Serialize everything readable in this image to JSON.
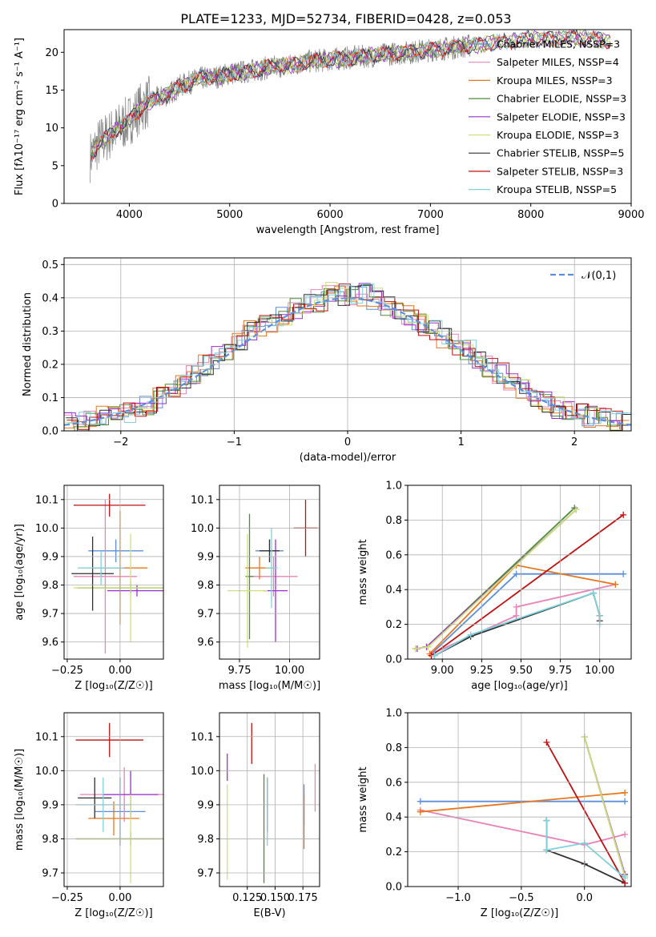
{
  "figure_title": "PLATE=1233, MJD=52734, FIBERID=0428, z=0.053",
  "colors": {
    "Chabrier MILES": "#5b8fdc",
    "Salpeter MILES": "#e882b8",
    "Kroupa MILES": "#e8761e",
    "Chabrier ELODIE": "#4d8c38",
    "Salpeter ELODIE": "#9a2fd0",
    "Kroupa ELODIE": "#cfe07a",
    "Chabrier STELIB": "#303030",
    "Salpeter STELIB": "#c01010",
    "Kroupa STELIB": "#7fd2dc",
    "data": "#808080",
    "normal": "#5b8fdc"
  },
  "chart_data": [
    {
      "id": "spectrum",
      "type": "line",
      "title": "",
      "xlabel": "wavelength [Angstrom, rest frame]",
      "ylabel": "Flux [fλ10⁻¹⁷ erg cm⁻² s⁻¹ A⁻¹]",
      "xlim": [
        3350,
        9000
      ],
      "ylim": [
        0,
        23
      ],
      "xticks": [
        "4000",
        "5000",
        "6000",
        "7000",
        "8000",
        "9000"
      ],
      "yticks": [
        "0",
        "5",
        "10",
        "15",
        "20"
      ],
      "legend_position": "right",
      "legend": [
        "Chabrier MILES, NSSP=3",
        "Salpeter MILES, NSSP=4",
        "Kroupa MILES, NSSP=3",
        "Chabrier ELODIE, NSSP=3",
        "Salpeter ELODIE, NSSP=3",
        "Kroupa ELODIE, NSSP=3",
        "Chabrier STELIB, NSSP=5",
        "Salpeter STELIB, NSSP=3",
        "Kroupa STELIB, NSSP=5"
      ],
      "continuum": {
        "x": [
          3600,
          3700,
          3800,
          3900,
          4000,
          4100,
          4200,
          4300,
          4400,
          4500,
          4700,
          4900,
          5000,
          5200,
          5400,
          5600,
          5800,
          6000,
          6200,
          6400,
          6600,
          6800,
          7000,
          7200,
          7400,
          7600,
          7800,
          8000,
          8200,
          8400,
          8600,
          8800
        ],
        "y": [
          6,
          8,
          9,
          10,
          11,
          12.5,
          13.5,
          14,
          14.5,
          15.5,
          16.5,
          16.8,
          17.2,
          17.5,
          18,
          18.3,
          18.8,
          19,
          19.3,
          19.5,
          19.8,
          20,
          20.3,
          20.6,
          20.9,
          21.2,
          21.5,
          21.7,
          21.8,
          22,
          21.7,
          21.5
        ]
      }
    },
    {
      "id": "residuals",
      "type": "step",
      "xlabel": "(data-model)/error",
      "ylabel": "Normed distribution",
      "xlim": [
        -2.5,
        2.5
      ],
      "ylim": [
        0,
        0.52
      ],
      "xticks": [
        "−2",
        "−1",
        "0",
        "1",
        "2"
      ],
      "yticks": [
        "0.0",
        "0.1",
        "0.2",
        "0.3",
        "0.4",
        "0.5"
      ],
      "legend": [
        "𝒩(0,1)"
      ],
      "legend_position": "top-right",
      "bins": [
        -2.5,
        -2.4,
        -2.3,
        -2.2,
        -2.1,
        -2.0,
        -1.9,
        -1.8,
        -1.7,
        -1.6,
        -1.5,
        -1.4,
        -1.3,
        -1.2,
        -1.1,
        -1.0,
        -0.9,
        -0.8,
        -0.7,
        -0.6,
        -0.5,
        -0.4,
        -0.3,
        -0.2,
        -0.1,
        0.0,
        0.1,
        0.2,
        0.3,
        0.4,
        0.5,
        0.6,
        0.7,
        0.8,
        0.9,
        1.0,
        1.1,
        1.2,
        1.3,
        1.4,
        1.5,
        1.6,
        1.7,
        1.8,
        1.9,
        2.0,
        2.1,
        2.2,
        2.3,
        2.4,
        2.5
      ],
      "mean_values": [
        0.02,
        0.025,
        0.03,
        0.04,
        0.045,
        0.055,
        0.065,
        0.08,
        0.1,
        0.12,
        0.14,
        0.165,
        0.2,
        0.22,
        0.24,
        0.27,
        0.3,
        0.32,
        0.33,
        0.35,
        0.37,
        0.38,
        0.39,
        0.42,
        0.41,
        0.4,
        0.41,
        0.4,
        0.38,
        0.37,
        0.35,
        0.32,
        0.3,
        0.28,
        0.26,
        0.24,
        0.22,
        0.19,
        0.17,
        0.15,
        0.13,
        0.1,
        0.085,
        0.07,
        0.06,
        0.05,
        0.04,
        0.035,
        0.03,
        0.02
      ]
    },
    {
      "id": "age-vs-z",
      "type": "errorbar",
      "xlabel": "Z [log₁₀(Z/Z☉)]",
      "ylabel": "age  [log₁₀(age/yr)]",
      "xlim": [
        -0.265,
        0.205
      ],
      "ylim": [
        9.54,
        10.15
      ],
      "xticks": [
        "−0.25",
        "0.00"
      ],
      "yticks": [
        "9.6",
        "9.7",
        "9.8",
        "9.9",
        "10.0",
        "10.1"
      ],
      "points": [
        {
          "series": "Chabrier MILES",
          "x": -0.02,
          "xerr": 0.13,
          "y": 9.92,
          "yerr": 0.04
        },
        {
          "series": "Salpeter MILES",
          "x": -0.07,
          "xerr": 0.15,
          "y": 9.83,
          "yerr": 0.27
        },
        {
          "series": "Kroupa MILES",
          "x": 0.0,
          "xerr": 0.13,
          "y": 9.86,
          "yerr": 0.2
        },
        {
          "series": "Chabrier ELODIE",
          "x": 0.05,
          "xerr": 0.25,
          "y": 9.79,
          "yerr": 0.02
        },
        {
          "series": "Salpeter ELODIE",
          "x": 0.08,
          "xerr": 0.14,
          "y": 9.78,
          "yerr": 0.02
        },
        {
          "series": "Kroupa ELODIE",
          "x": 0.05,
          "xerr": 0.27,
          "y": 9.79,
          "yerr": 0.19
        },
        {
          "series": "Chabrier STELIB",
          "x": -0.13,
          "xerr": 0.1,
          "y": 9.84,
          "yerr": 0.13
        },
        {
          "series": "Salpeter STELIB",
          "x": -0.05,
          "xerr": 0.17,
          "y": 10.08,
          "yerr": 0.04
        },
        {
          "series": "Kroupa STELIB",
          "x": -0.09,
          "xerr": 0.11,
          "y": 9.86,
          "yerr": 0.06
        }
      ]
    },
    {
      "id": "age-vs-mass",
      "type": "errorbar",
      "xlabel": "mass [log₁₀(M/M☉)]",
      "ylabel": "",
      "xlim": [
        9.65,
        10.15
      ],
      "ylim": [
        9.54,
        10.15
      ],
      "xticks": [
        "9.75",
        "10.00"
      ],
      "yticks": [
        "9.6",
        "9.7",
        "9.8",
        "9.9",
        "10.0",
        "10.1"
      ],
      "points": [
        {
          "series": "Chabrier MILES",
          "x": 9.9,
          "xerr": 0.07,
          "y": 9.92,
          "yerr": 0.04
        },
        {
          "series": "Salpeter MILES",
          "x": 9.92,
          "xerr": 0.12,
          "y": 9.83,
          "yerr": 0.07
        },
        {
          "series": "Kroupa MILES",
          "x": 9.85,
          "xerr": 0.07,
          "y": 9.86,
          "yerr": 0.04
        },
        {
          "series": "Chabrier ELODIE",
          "x": 9.8,
          "xerr": 0.02,
          "y": 9.83,
          "yerr": 0.22
        },
        {
          "series": "Salpeter ELODIE",
          "x": 9.93,
          "xerr": 0.06,
          "y": 9.78,
          "yerr": 0.18
        },
        {
          "series": "Kroupa ELODIE",
          "x": 9.79,
          "xerr": 0.1,
          "y": 9.78,
          "yerr": 0.2
        },
        {
          "series": "Chabrier STELIB",
          "x": 9.9,
          "xerr": 0.05,
          "y": 9.92,
          "yerr": 0.04
        },
        {
          "series": "Salpeter STELIB",
          "x": 10.08,
          "xerr": 0.06,
          "y": 10.0,
          "yerr": 0.1
        },
        {
          "series": "Kroupa STELIB",
          "x": 9.91,
          "xerr": 0.03,
          "y": 9.86,
          "yerr": 0.14
        }
      ]
    },
    {
      "id": "mass-weight-vs-age",
      "type": "line",
      "xlabel": "age  [log₁₀(age/yr)]",
      "ylabel": "mass weight",
      "xlim": [
        8.78,
        10.2
      ],
      "ylim": [
        0,
        1
      ],
      "xticks": [
        "9.00",
        "9.25",
        "9.50",
        "9.75",
        "10.00"
      ],
      "yticks": [
        "0.0",
        "0.2",
        "0.4",
        "0.6",
        "0.8",
        "1.0"
      ],
      "series": [
        {
          "name": "Chabrier MILES",
          "x": [
            8.93,
            9.47,
            10.15
          ],
          "y": [
            0.03,
            0.49,
            0.49
          ]
        },
        {
          "name": "Salpeter MILES",
          "x": [
            8.93,
            9.47,
            9.47,
            10.1
          ],
          "y": [
            0.03,
            0.25,
            0.3,
            0.43
          ]
        },
        {
          "name": "Kroupa MILES",
          "x": [
            8.92,
            9.47,
            10.1
          ],
          "y": [
            0.03,
            0.54,
            0.43
          ]
        },
        {
          "name": "Chabrier ELODIE",
          "x": [
            8.83,
            8.9,
            9.84
          ],
          "y": [
            0.06,
            0.07,
            0.87
          ]
        },
        {
          "name": "Salpeter ELODIE",
          "x": [
            8.84,
            8.9,
            9.85
          ],
          "y": [
            0.06,
            0.07,
            0.86
          ]
        },
        {
          "name": "Kroupa ELODIE",
          "x": [
            8.83,
            8.91,
            9.85
          ],
          "y": [
            0.06,
            0.07,
            0.86
          ]
        },
        {
          "name": "Chabrier STELIB",
          "x": [
            8.95,
            9.18,
            9.96,
            10.0,
            10.0
          ],
          "y": [
            0.02,
            0.13,
            0.38,
            0.25,
            0.22
          ]
        },
        {
          "name": "Salpeter STELIB",
          "x": [
            8.93,
            10.15
          ],
          "y": [
            0.02,
            0.83
          ]
        },
        {
          "name": "Kroupa STELIB",
          "x": [
            8.95,
            9.18,
            9.96,
            10.0,
            10.0
          ],
          "y": [
            0.02,
            0.14,
            0.38,
            0.25,
            0.2
          ]
        }
      ]
    },
    {
      "id": "mass-vs-z",
      "type": "errorbar",
      "xlabel": "Z [log₁₀(Z/Z☉)]",
      "ylabel": "mass [log₁₀(M/M☉)]",
      "xlim": [
        -0.265,
        0.205
      ],
      "ylim": [
        9.66,
        10.17
      ],
      "xticks": [
        "−0.25",
        "0.00"
      ],
      "yticks": [
        "9.7",
        "9.8",
        "9.9",
        "10.0",
        "10.1"
      ],
      "points": [
        {
          "series": "Chabrier MILES",
          "x": 0.0,
          "xerr": 0.12,
          "y": 9.88,
          "yerr": 0.1
        },
        {
          "series": "Salpeter MILES",
          "x": 0.02,
          "xerr": 0.21,
          "y": 9.93,
          "yerr": 0.08
        },
        {
          "series": "Kroupa MILES",
          "x": -0.03,
          "xerr": 0.12,
          "y": 9.86,
          "yerr": 0.05
        },
        {
          "series": "Chabrier ELODIE",
          "x": 0.05,
          "xerr": 0.26,
          "y": 9.8,
          "yerr": 0.02
        },
        {
          "series": "Salpeter ELODIE",
          "x": 0.05,
          "xerr": 0.13,
          "y": 9.93,
          "yerr": 0.07
        },
        {
          "series": "Kroupa ELODIE",
          "x": 0.05,
          "xerr": 0.26,
          "y": 9.8,
          "yerr": 0.13
        },
        {
          "series": "Chabrier STELIB",
          "x": -0.12,
          "xerr": 0.08,
          "y": 9.92,
          "yerr": 0.06
        },
        {
          "series": "Salpeter STELIB",
          "x": -0.05,
          "xerr": 0.16,
          "y": 10.09,
          "yerr": 0.05
        },
        {
          "series": "Kroupa STELIB",
          "x": -0.08,
          "xerr": 0.13,
          "y": 9.9,
          "yerr": 0.08
        }
      ]
    },
    {
      "id": "mass-vs-ebv",
      "type": "errorbar",
      "xlabel": "E(B-V)",
      "ylabel": "",
      "xlim": [
        0.1,
        0.19
      ],
      "ylim": [
        9.66,
        10.17
      ],
      "xticks": [
        "0.125",
        "0.150",
        "0.175"
      ],
      "yticks": [
        "9.7",
        "9.8",
        "9.9",
        "10.0",
        "10.1"
      ],
      "points": [
        {
          "series": "Chabrier MILES",
          "x": 0.176,
          "y": 9.9,
          "yerr": 0.06
        },
        {
          "series": "Salpeter MILES",
          "x": 0.186,
          "y": 9.95,
          "yerr": 0.07
        },
        {
          "series": "Kroupa MILES",
          "x": 0.176,
          "y": 9.85,
          "yerr": 0.08
        },
        {
          "series": "Chabrier ELODIE",
          "x": 0.14,
          "y": 9.83,
          "yerr": 0.16
        },
        {
          "series": "Salpeter ELODIE",
          "x": 0.107,
          "y": 10.01,
          "yerr": 0.04
        },
        {
          "series": "Kroupa ELODIE",
          "x": 0.107,
          "y": 9.82,
          "yerr": 0.14
        },
        {
          "series": "Chabrier STELIB",
          "x": 0.143,
          "y": 9.9,
          "yerr": 0.08
        },
        {
          "series": "Salpeter STELIB",
          "x": 0.129,
          "y": 10.08,
          "yerr": 0.06
        },
        {
          "series": "Kroupa STELIB",
          "x": 0.143,
          "y": 9.88,
          "yerr": 0.1
        }
      ]
    },
    {
      "id": "mass-weight-vs-z",
      "type": "line",
      "xlabel": "Z [log₁₀(Z/Z☉)]",
      "ylabel": "mass weight",
      "xlim": [
        -1.4,
        0.37
      ],
      "ylim": [
        0,
        1
      ],
      "xticks": [
        "−1.0",
        "−0.5",
        "0.0"
      ],
      "yticks": [
        "0.0",
        "0.2",
        "0.4",
        "0.6",
        "0.8",
        "1.0"
      ],
      "series": [
        {
          "name": "Chabrier MILES",
          "x": [
            -1.3,
            0.32
          ],
          "y": [
            0.49,
            0.49
          ]
        },
        {
          "name": "Salpeter MILES",
          "x": [
            -1.3,
            0.0,
            0.32
          ],
          "y": [
            0.44,
            0.24,
            0.3
          ]
        },
        {
          "name": "Kroupa MILES",
          "x": [
            -1.3,
            0.32
          ],
          "y": [
            0.43,
            0.54
          ]
        },
        {
          "name": "Chabrier ELODIE",
          "x": [
            0.0,
            0.32
          ],
          "y": [
            0.86,
            0.06
          ]
        },
        {
          "name": "Salpeter ELODIE",
          "x": [
            0.0,
            0.32
          ],
          "y": [
            0.86,
            0.07
          ]
        },
        {
          "name": "Kroupa ELODIE",
          "x": [
            0.0,
            0.32
          ],
          "y": [
            0.86,
            0.06
          ]
        },
        {
          "name": "Chabrier STELIB",
          "x": [
            -0.3,
            -0.3,
            0.0,
            0.32
          ],
          "y": [
            0.38,
            0.21,
            0.13,
            0.02
          ]
        },
        {
          "name": "Salpeter STELIB",
          "x": [
            -0.3,
            0.32
          ],
          "y": [
            0.83,
            0.02
          ]
        },
        {
          "name": "Kroupa STELIB",
          "x": [
            -0.3,
            -0.3,
            0.0,
            0.32
          ],
          "y": [
            0.38,
            0.21,
            0.25,
            0.05
          ]
        }
      ]
    }
  ]
}
